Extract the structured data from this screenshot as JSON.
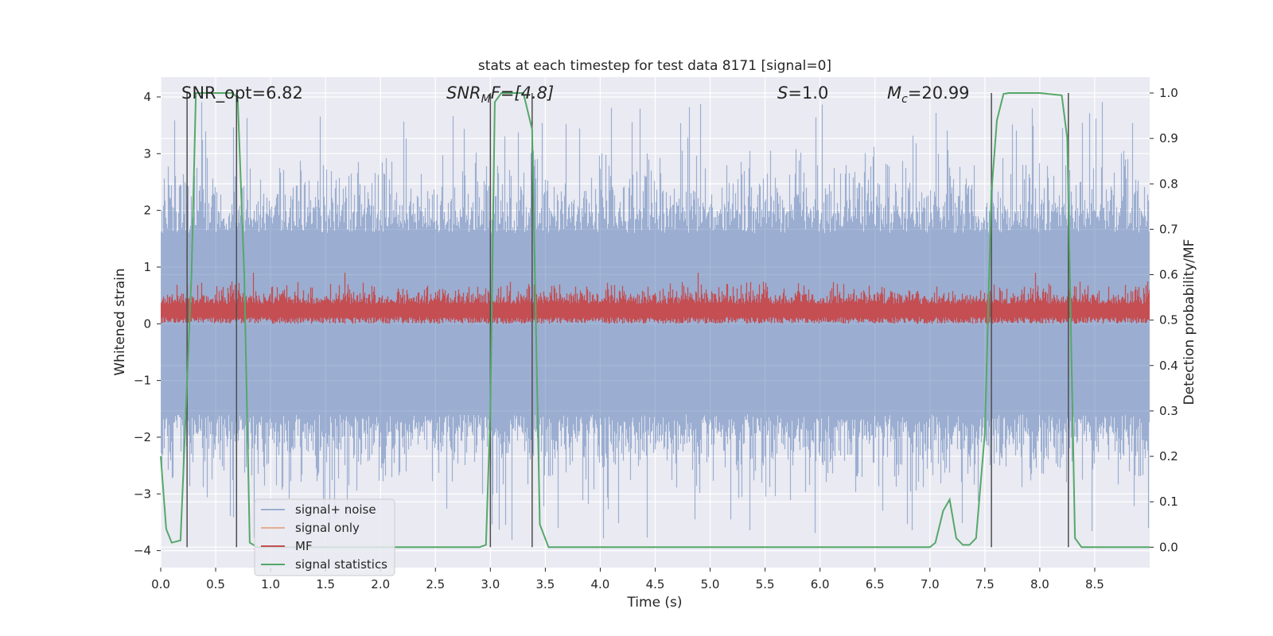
{
  "chart_data": {
    "type": "line",
    "title": "stats at each timestep for test data 8171 [signal=0]",
    "xlabel": "Time (s)",
    "ylabel": "Whitened strain",
    "y2label": "Detection probability/MF",
    "xlim": [
      0.0,
      9.0
    ],
    "ylim": [
      -4.3,
      4.35
    ],
    "y2lim": [
      -0.045,
      1.035
    ],
    "xticks": [
      "0.0",
      "0.5",
      "1.0",
      "1.5",
      "2.0",
      "2.5",
      "3.0",
      "3.5",
      "4.0",
      "4.5",
      "5.0",
      "5.5",
      "6.0",
      "6.5",
      "7.0",
      "7.5",
      "8.0",
      "8.5"
    ],
    "yticks": [
      "4",
      "3",
      "2",
      "1",
      "0",
      "−1",
      "−2",
      "−3",
      "−4"
    ],
    "y2ticks": [
      "1.0",
      "0.9",
      "0.8",
      "0.7",
      "0.6",
      "0.5",
      "0.4",
      "0.3",
      "0.2",
      "0.1",
      "0.0"
    ],
    "grid": true,
    "legend_position": "lower-left",
    "colors": {
      "background": "#eaeaf2",
      "grid": "#ffffff",
      "signal_noise": "#4c72b0",
      "signal_only": "#dd8452",
      "mf": "#c44e52",
      "signal_statistics": "#55a868",
      "vlines": "#4d4d4d"
    },
    "annotations": {
      "snr_opt": "SNR_opt=6.82",
      "snr_mf_base": "SNR",
      "snr_mf_sub": "M",
      "snr_mf_rest": "F=[4.8]",
      "s_base": "S",
      "s_rest": "=1.0",
      "mc_base": "M",
      "mc_sub": "c",
      "mc_rest": "=20.99"
    },
    "series": [
      {
        "name": "signal+ noise",
        "style": "noise band",
        "ylim_data": [
          -3.9,
          4.0
        ],
        "envelope_typical": [
          -2.2,
          2.6
        ]
      },
      {
        "name": "signal only",
        "values": []
      },
      {
        "name": "MF",
        "style": "noise band",
        "range_typical": [
          0.0,
          0.75
        ]
      },
      {
        "name": "signal statistics",
        "axis": "right",
        "x": [
          0.0,
          0.05,
          0.1,
          0.18,
          0.28,
          0.32,
          0.35,
          0.45,
          0.55,
          0.65,
          0.7,
          0.76,
          0.81,
          0.88,
          1.0,
          1.5,
          2.0,
          2.5,
          2.9,
          2.96,
          3.0,
          3.04,
          3.1,
          3.2,
          3.3,
          3.38,
          3.45,
          3.53,
          3.6,
          4.0,
          5.0,
          6.0,
          7.0,
          7.05,
          7.12,
          7.18,
          7.24,
          7.3,
          7.36,
          7.42,
          7.5,
          7.56,
          7.61,
          7.67,
          7.72,
          7.8,
          8.0,
          8.2,
          8.25,
          8.32,
          8.38,
          8.45,
          8.6,
          9.0
        ],
        "values": [
          0.2,
          0.04,
          0.01,
          0.015,
          0.6,
          1.0,
          1.0,
          1.0,
          1.0,
          1.0,
          0.99,
          0.6,
          0.01,
          0.0,
          0.0,
          0.0,
          0.0,
          0.0,
          0.0,
          0.005,
          0.3,
          0.98,
          1.0,
          1.0,
          1.0,
          0.92,
          0.05,
          0.0,
          0.0,
          0.0,
          0.0,
          0.0,
          0.0,
          0.01,
          0.08,
          0.105,
          0.02,
          0.005,
          0.005,
          0.02,
          0.25,
          0.78,
          0.94,
          0.998,
          1.0,
          1.0,
          1.0,
          0.995,
          0.9,
          0.02,
          0.0,
          0.0,
          0.0,
          0.0
        ]
      }
    ],
    "vertical_lines_x": [
      0.24,
      0.69,
      3.0,
      3.38,
      7.56,
      8.26
    ],
    "legend": [
      "signal+ noise",
      "signal only",
      "MF",
      "signal statistics"
    ]
  }
}
